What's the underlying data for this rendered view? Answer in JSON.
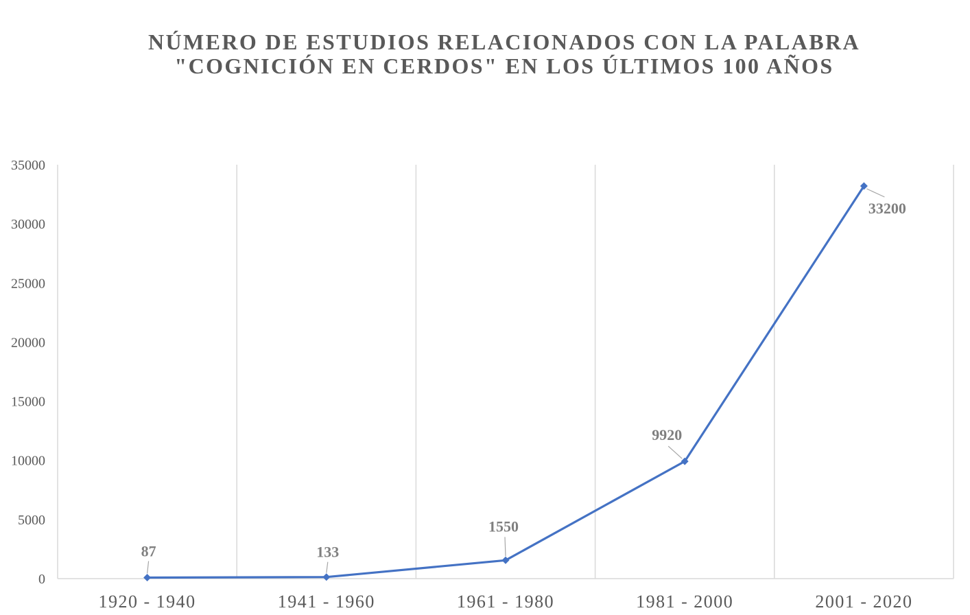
{
  "chart_data": {
    "type": "line",
    "title": "NÚMERO DE ESTUDIOS RELACIONADOS CON LA PALABRA \"COGNICIÓN EN CERDOS\" EN LOS ÚLTIMOS 100 AÑOS",
    "title_lines": [
      "NÚMERO DE ESTUDIOS RELACIONADOS CON LA PALABRA",
      "\"COGNICIÓN EN CERDOS\" EN LOS ÚLTIMOS 100 AÑOS"
    ],
    "xlabel": "",
    "ylabel": "",
    "categories": [
      "1920 - 1940",
      "1941 - 1960",
      "1961 - 1980",
      "1981 - 2000",
      "2001 - 2020"
    ],
    "series": [
      {
        "values": [
          87,
          133,
          1550,
          9920,
          33200
        ],
        "color": "#4472c4",
        "marker": "diamond"
      }
    ],
    "data_labels": [
      "87",
      "133",
      "1550",
      "9920",
      "33200"
    ],
    "ylim": [
      0,
      35000
    ],
    "yticks": [
      0,
      5000,
      10000,
      15000,
      20000,
      25000,
      30000,
      35000
    ],
    "grid": "vertical",
    "legend": "none",
    "colors": {
      "line": "#4472c4",
      "text": "#595959",
      "data_label": "#7f7f7f",
      "grid": "#d9d9d9"
    }
  }
}
